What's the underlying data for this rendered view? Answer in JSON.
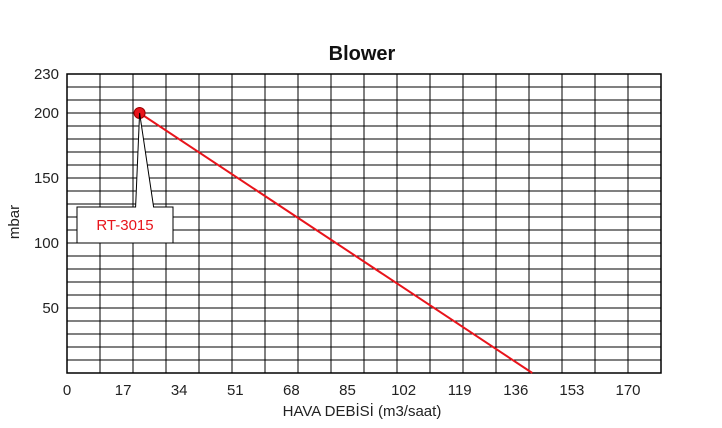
{
  "chart_data": {
    "type": "line",
    "title": "Blower",
    "xlabel": "HAVA DEBİSİ (m3/saat)",
    "ylabel": "mbar",
    "xlim": [
      0,
      180
    ],
    "ylim": [
      0,
      230
    ],
    "x_ticks": [
      "0",
      "17",
      "34",
      "51",
      "68",
      "85",
      "102",
      "119",
      "136",
      "153",
      "170"
    ],
    "y_ticks": [
      "50",
      "100",
      "150",
      "200",
      "230"
    ],
    "grid": true,
    "series": [
      {
        "name": "RT-3015",
        "color": "#e8141b",
        "x": [
          22,
          141
        ],
        "y": [
          200,
          0
        ]
      }
    ],
    "annotation": {
      "text": "RT-3015",
      "color": "#e8141b"
    }
  }
}
